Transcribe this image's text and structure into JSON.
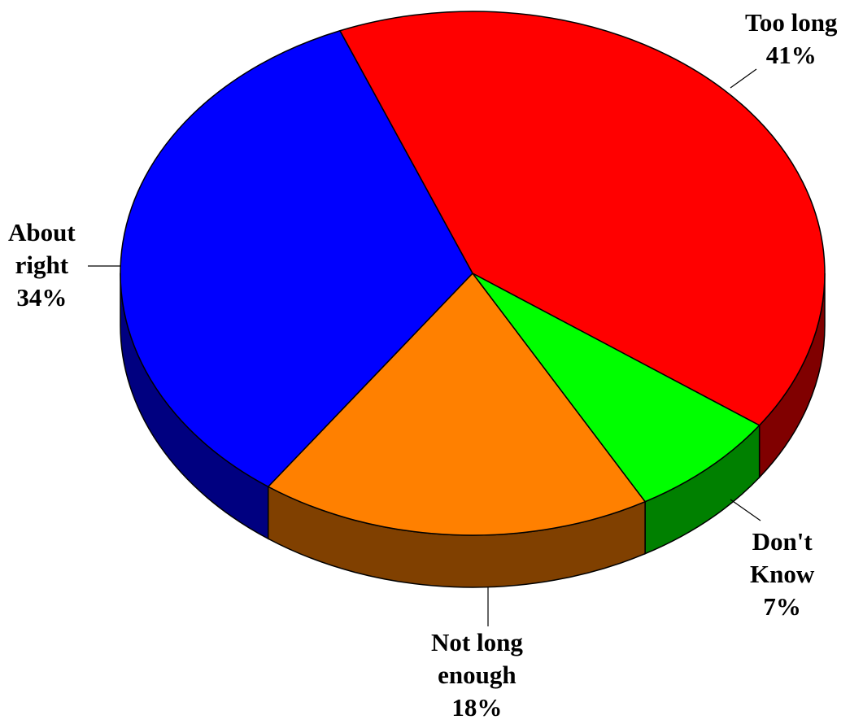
{
  "chart_data": {
    "type": "pie",
    "title": "",
    "style": "3d",
    "slices": [
      {
        "label_lines": [
          "Too long"
        ],
        "percent_text": "41%",
        "value": 41,
        "color": "#ff0000",
        "side_color": "#800000"
      },
      {
        "label_lines": [
          "Don't",
          "Know"
        ],
        "percent_text": "7%",
        "value": 7,
        "color": "#00ff00",
        "side_color": "#008000"
      },
      {
        "label_lines": [
          "Not long",
          "enough"
        ],
        "percent_text": "18%",
        "value": 18,
        "color": "#ff8000",
        "side_color": "#804000"
      },
      {
        "label_lines": [
          "About",
          "right"
        ],
        "percent_text": "34%",
        "value": 34,
        "color": "#0000ff",
        "side_color": "#000080"
      }
    ]
  }
}
